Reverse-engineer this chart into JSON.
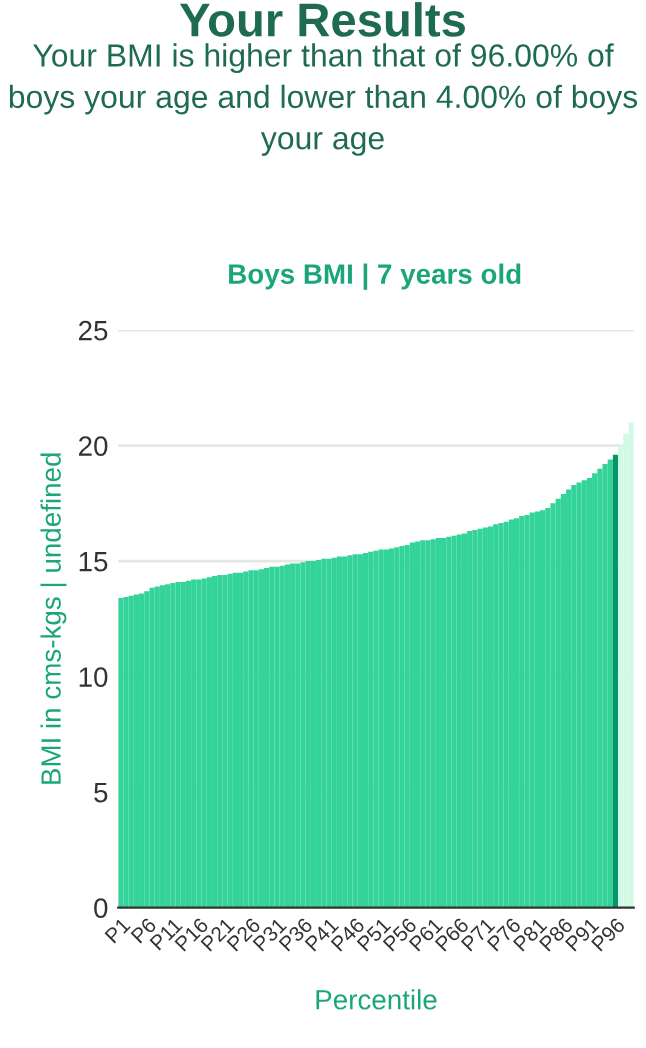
{
  "chart_data": {
    "type": "bar",
    "title": "Your Results",
    "subtitle": "Your BMI is higher than that of 96.00% of boys your age and lower than 4.00% of boys your age",
    "annotations": [
      "Boys BMI | 7 years old"
    ],
    "xlabel": "Percentile",
    "ylabel": "BMI in cms-kgs | undefined",
    "categories": [
      "P1",
      null,
      null,
      null,
      null,
      "P6",
      null,
      null,
      null,
      null,
      "P11",
      null,
      null,
      null,
      null,
      "P16",
      null,
      null,
      null,
      null,
      "P21",
      null,
      null,
      null,
      null,
      "P26",
      null,
      null,
      null,
      null,
      "P31",
      null,
      null,
      null,
      null,
      "P36",
      null,
      null,
      null,
      null,
      "P41",
      null,
      null,
      null,
      null,
      "P46",
      null,
      null,
      null,
      null,
      "P51",
      null,
      null,
      null,
      null,
      "P56",
      null,
      null,
      null,
      null,
      "P61",
      null,
      null,
      null,
      null,
      "P66",
      null,
      null,
      null,
      null,
      "P71",
      null,
      null,
      null,
      null,
      "P76",
      null,
      null,
      null,
      null,
      "P81",
      null,
      null,
      null,
      null,
      "P86",
      null,
      null,
      null,
      null,
      "P91",
      null,
      null,
      null,
      null,
      "P96",
      null,
      null,
      null
    ],
    "values": [
      13.4,
      13.45,
      13.5,
      13.55,
      13.6,
      13.7,
      13.85,
      13.9,
      13.95,
      14.0,
      14.05,
      14.1,
      14.1,
      14.15,
      14.2,
      14.2,
      14.25,
      14.3,
      14.35,
      14.4,
      14.4,
      14.45,
      14.5,
      14.5,
      14.55,
      14.6,
      14.6,
      14.65,
      14.7,
      14.75,
      14.75,
      14.8,
      14.85,
      14.9,
      14.9,
      14.95,
      15.0,
      15.0,
      15.05,
      15.1,
      15.1,
      15.15,
      15.2,
      15.2,
      15.25,
      15.3,
      15.3,
      15.35,
      15.4,
      15.45,
      15.5,
      15.5,
      15.55,
      15.6,
      15.65,
      15.7,
      15.8,
      15.85,
      15.9,
      15.9,
      15.95,
      16.0,
      16.0,
      16.05,
      16.1,
      16.15,
      16.2,
      16.3,
      16.35,
      16.4,
      16.45,
      16.5,
      16.6,
      16.65,
      16.7,
      16.8,
      16.85,
      16.95,
      17.0,
      17.1,
      17.15,
      17.2,
      17.3,
      17.5,
      17.7,
      17.9,
      18.1,
      18.3,
      18.4,
      18.5,
      18.6,
      18.8,
      19.0,
      19.2,
      19.4,
      19.6,
      20.0,
      20.5,
      21.0
    ],
    "colors": [
      "#34d399",
      "#34d399",
      "#34d399",
      "#34d399",
      "#34d399",
      "#34d399",
      "#34d399",
      "#34d399",
      "#34d399",
      "#34d399",
      "#34d399",
      "#34d399",
      "#34d399",
      "#34d399",
      "#34d399",
      "#34d399",
      "#34d399",
      "#34d399",
      "#34d399",
      "#34d399",
      "#34d399",
      "#34d399",
      "#34d399",
      "#34d399",
      "#34d399",
      "#34d399",
      "#34d399",
      "#34d399",
      "#34d399",
      "#34d399",
      "#34d399",
      "#34d399",
      "#34d399",
      "#34d399",
      "#34d399",
      "#34d399",
      "#34d399",
      "#34d399",
      "#34d399",
      "#34d399",
      "#34d399",
      "#34d399",
      "#34d399",
      "#34d399",
      "#34d399",
      "#34d399",
      "#34d399",
      "#34d399",
      "#34d399",
      "#34d399",
      "#34d399",
      "#34d399",
      "#34d399",
      "#34d399",
      "#34d399",
      "#34d399",
      "#34d399",
      "#34d399",
      "#34d399",
      "#34d399",
      "#34d399",
      "#34d399",
      "#34d399",
      "#34d399",
      "#34d399",
      "#34d399",
      "#34d399",
      "#34d399",
      "#34d399",
      "#34d399",
      "#34d399",
      "#34d399",
      "#34d399",
      "#34d399",
      "#34d399",
      "#34d399",
      "#34d399",
      "#34d399",
      "#34d399",
      "#34d399",
      "#34d399",
      "#34d399",
      "#34d399",
      "#34d399",
      "#34d399",
      "#34d399",
      "#34d399",
      "#34d399",
      "#34d399",
      "#34d399",
      "#34d399",
      "#34d399",
      "#34d399",
      "#34d399",
      "#34d399",
      "#059669",
      "#d1fae5",
      "#d1fae5",
      "#d1fae5"
    ],
    "ylim": [
      0,
      25
    ],
    "yticks": [
      0,
      5,
      10,
      15,
      20,
      25
    ],
    "grid": "y"
  }
}
